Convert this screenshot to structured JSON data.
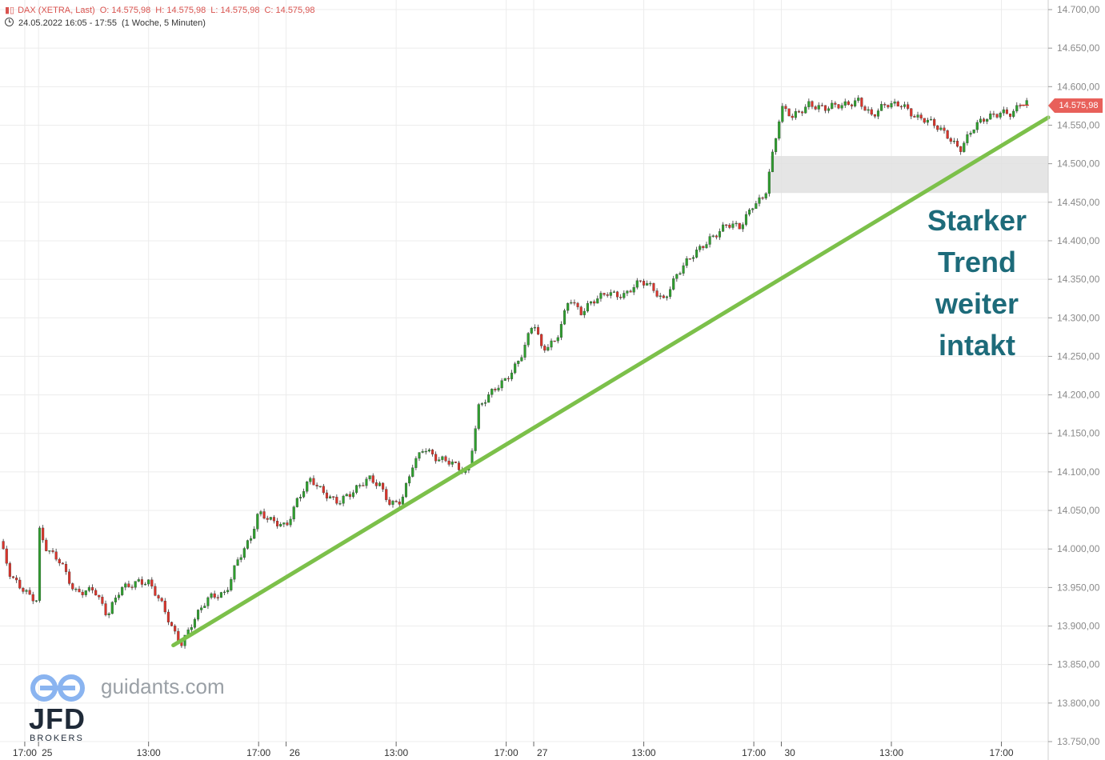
{
  "header": {
    "symbol_icon": "candlestick-icon",
    "instrument": "DAX (XETRA, Last)",
    "open": "O: 14.575,98",
    "high": "H: 14.575,98",
    "low": "L: 14.575,98",
    "close": "C: 14.575,98",
    "clock_icon": "clock-icon",
    "period": "24.05.2022 16:05 - 17:55",
    "interval": "(1 Woche, 5 Minuten)"
  },
  "annotation": {
    "lines": [
      "Starker",
      "Trend",
      "weiter",
      "intakt"
    ]
  },
  "last_price_label": "14.575,98",
  "branding": {
    "site": "guidants.com",
    "broker": "JFD",
    "broker_sub": "BROKERS"
  },
  "colors": {
    "up": "#2e9e2e",
    "down": "#d9342b",
    "trendline": "#7cc04a",
    "zone": "#e0e0e0",
    "annotation": "#1d6b7a"
  },
  "chart_data": {
    "type": "candlestick",
    "y_axis": {
      "ylim": [
        13750,
        14700
      ],
      "ticks": [
        13750,
        13800,
        13850,
        13900,
        13950,
        14000,
        14050,
        14100,
        14150,
        14200,
        14250,
        14300,
        14350,
        14400,
        14450,
        14500,
        14550,
        14600,
        14650,
        14700
      ],
      "tick_labels": [
        "13.750,00",
        "13.800,00",
        "13.850,00",
        "13.900,00",
        "13.950,00",
        "14.000,00",
        "14.050,00",
        "14.100,00",
        "14.150,00",
        "14.200,00",
        "14.250,00",
        "14.300,00",
        "14.350,00",
        "14.400,00",
        "14.450,00",
        "14.500,00",
        "14.550,00",
        "14.600,00",
        "14.650,00",
        "14.700,00"
      ]
    },
    "x_axis": {
      "tick_labels": [
        "17:00",
        "25",
        "13:00",
        "17:00",
        "26",
        "13:00",
        "17:00",
        "27",
        "13:00",
        "17:00",
        "30",
        "13:00",
        "17:00"
      ],
      "tick_positions": [
        0.5,
        1,
        5,
        9,
        10,
        14,
        18,
        19,
        23,
        27,
        28,
        32,
        36
      ],
      "xlim": [
        -0.4,
        37.7
      ],
      "unit": "hours (trading session index)"
    },
    "price_path": [
      [
        -0.4,
        14010
      ],
      [
        0.0,
        13960
      ],
      [
        0.5,
        13945
      ],
      [
        1.0,
        13935
      ],
      [
        1.0,
        14030
      ],
      [
        1.3,
        14000
      ],
      [
        1.8,
        13980
      ],
      [
        2.3,
        13945
      ],
      [
        3.0,
        13950
      ],
      [
        3.5,
        13910
      ],
      [
        4.0,
        13950
      ],
      [
        4.6,
        13960
      ],
      [
        5.0,
        13955
      ],
      [
        5.5,
        13925
      ],
      [
        5.9,
        13895
      ],
      [
        6.2,
        13880
      ],
      [
        6.6,
        13905
      ],
      [
        7.2,
        13935
      ],
      [
        7.8,
        13945
      ],
      [
        8.2,
        13985
      ],
      [
        8.7,
        14010
      ],
      [
        9.0,
        14045
      ],
      [
        9.4,
        14040
      ],
      [
        9.8,
        14035
      ],
      [
        10.0,
        14030
      ],
      [
        10.4,
        14060
      ],
      [
        10.9,
        14090
      ],
      [
        11.4,
        14075
      ],
      [
        11.9,
        14060
      ],
      [
        12.4,
        14070
      ],
      [
        13.0,
        14095
      ],
      [
        13.4,
        14085
      ],
      [
        13.8,
        14055
      ],
      [
        14.2,
        14060
      ],
      [
        14.6,
        14110
      ],
      [
        15.0,
        14135
      ],
      [
        15.5,
        14115
      ],
      [
        16.0,
        14110
      ],
      [
        16.6,
        14100
      ],
      [
        17.0,
        14185
      ],
      [
        17.6,
        14205
      ],
      [
        18.0,
        14220
      ],
      [
        18.5,
        14250
      ],
      [
        19.0,
        14295
      ],
      [
        19.3,
        14255
      ],
      [
        19.8,
        14270
      ],
      [
        20.3,
        14330
      ],
      [
        20.7,
        14305
      ],
      [
        21.2,
        14320
      ],
      [
        21.7,
        14335
      ],
      [
        22.3,
        14330
      ],
      [
        22.9,
        14345
      ],
      [
        23.3,
        14340
      ],
      [
        23.7,
        14325
      ],
      [
        24.2,
        14355
      ],
      [
        24.8,
        14380
      ],
      [
        25.4,
        14405
      ],
      [
        26.0,
        14420
      ],
      [
        26.5,
        14415
      ],
      [
        27.0,
        14450
      ],
      [
        27.4,
        14460
      ],
      [
        28.0,
        14570
      ],
      [
        28.4,
        14560
      ],
      [
        29.0,
        14580
      ],
      [
        29.6,
        14570
      ],
      [
        30.2,
        14575
      ],
      [
        30.8,
        14585
      ],
      [
        31.3,
        14560
      ],
      [
        31.8,
        14575
      ],
      [
        32.4,
        14580
      ],
      [
        32.9,
        14560
      ],
      [
        33.5,
        14550
      ],
      [
        34.0,
        14540
      ],
      [
        34.5,
        14520
      ],
      [
        35.0,
        14545
      ],
      [
        35.5,
        14560
      ],
      [
        36.0,
        14570
      ],
      [
        36.4,
        14565
      ],
      [
        36.7,
        14576
      ],
      [
        37.0,
        14576
      ]
    ],
    "last_price": 14575.98,
    "support_zone": {
      "x_start": 27.6,
      "x_end": 37.7,
      "y_low": 14462,
      "y_high": 14510
    },
    "trendline": {
      "start": [
        5.9,
        13875
      ],
      "end": [
        37.7,
        14560
      ]
    }
  }
}
